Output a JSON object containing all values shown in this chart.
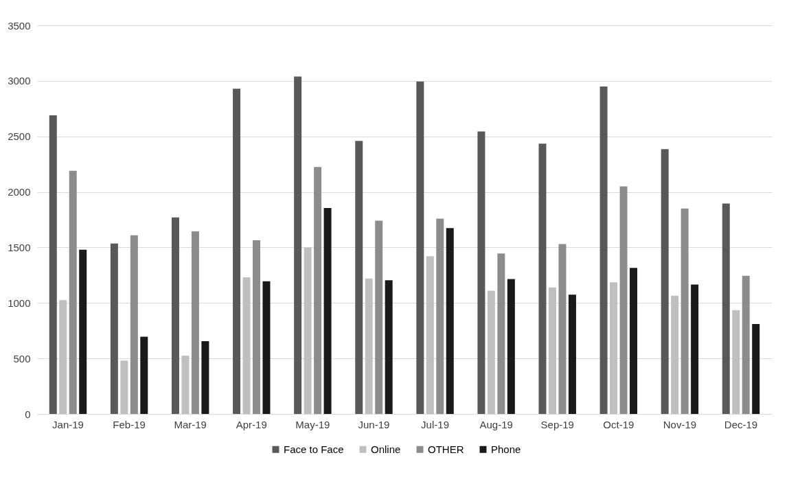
{
  "chart_data": {
    "type": "bar",
    "categories": [
      "Jan-19",
      "Feb-19",
      "Mar-19",
      "Apr-19",
      "May-19",
      "Jun-19",
      "Jul-19",
      "Aug-19",
      "Sep-19",
      "Oct-19",
      "Nov-19",
      "Dec-19"
    ],
    "series": [
      {
        "name": "Face to Face",
        "color": "#595959",
        "values": [
          2690,
          1535,
          1770,
          2930,
          3040,
          2460,
          2995,
          2545,
          2435,
          2950,
          2385,
          1895
        ]
      },
      {
        "name": "Online",
        "color": "#bfbfbf",
        "values": [
          1025,
          480,
          525,
          1230,
          1500,
          1220,
          1420,
          1110,
          1140,
          1185,
          1065,
          935
        ]
      },
      {
        "name": "OTHER",
        "color": "#8c8c8c",
        "values": [
          2190,
          1610,
          1645,
          1565,
          2225,
          1740,
          1760,
          1445,
          1530,
          2050,
          1850,
          1245
        ]
      },
      {
        "name": "Phone",
        "color": "#1a1a1a",
        "values": [
          1480,
          695,
          655,
          1195,
          1855,
          1205,
          1675,
          1215,
          1075,
          1315,
          1165,
          810
        ]
      }
    ],
    "ylim": [
      0,
      3500
    ],
    "yticks": [
      0,
      500,
      1000,
      1500,
      2000,
      2500,
      3000,
      3500
    ],
    "grid": "y",
    "legend": "bottom"
  }
}
